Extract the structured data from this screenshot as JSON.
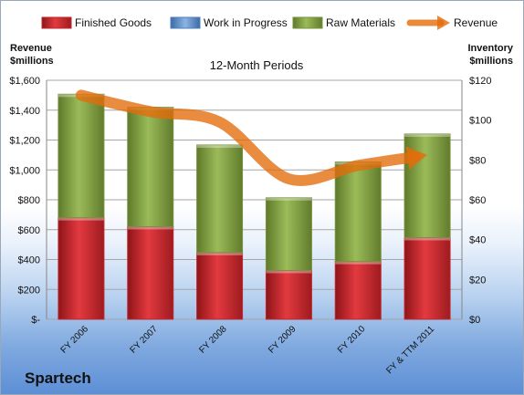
{
  "company": "Spartech",
  "chart_data": {
    "type": "bar",
    "stacked": true,
    "title": "12-Month Periods",
    "left_axis_label": [
      "Revenue",
      "$millions"
    ],
    "right_axis_label": [
      "Inventory",
      "$millions"
    ],
    "categories": [
      "FY 2006",
      "FY 2007",
      "FY 2008",
      "FY 2009",
      "FY 2010",
      "FY & TTM 2011"
    ],
    "left_axis": {
      "min": 0,
      "max": 1600,
      "step": 200,
      "tick_labels": [
        "$-",
        "$200",
        "$400",
        "$600",
        "$800",
        "$1,000",
        "$1,200",
        "$1,400",
        "$1,600"
      ]
    },
    "right_axis": {
      "min": 0,
      "max": 120,
      "step": 20,
      "tick_labels": [
        "$0",
        "$20",
        "$40",
        "$60",
        "$80",
        "$100",
        "$120"
      ]
    },
    "series": [
      {
        "name": "Finished Goods",
        "kind": "bar",
        "axis": "right",
        "color": "#c0272d",
        "values": [
          51,
          46.5,
          33.5,
          24.5,
          29,
          41
        ]
      },
      {
        "name": "Work in Progress",
        "kind": "bar",
        "axis": "right",
        "color": "#4f81bd",
        "values": [
          0,
          0,
          0,
          0,
          0,
          0
        ]
      },
      {
        "name": "Raw Materials",
        "kind": "bar",
        "axis": "right",
        "color": "#77933c",
        "values": [
          62,
          60,
          54,
          36.5,
          50,
          52
        ]
      },
      {
        "name": "Revenue",
        "kind": "line",
        "axis": "left",
        "color": "#e46c0a",
        "values": [
          1500,
          1390,
          1320,
          940,
          1030,
          1100
        ]
      }
    ],
    "legend_position": "top"
  }
}
